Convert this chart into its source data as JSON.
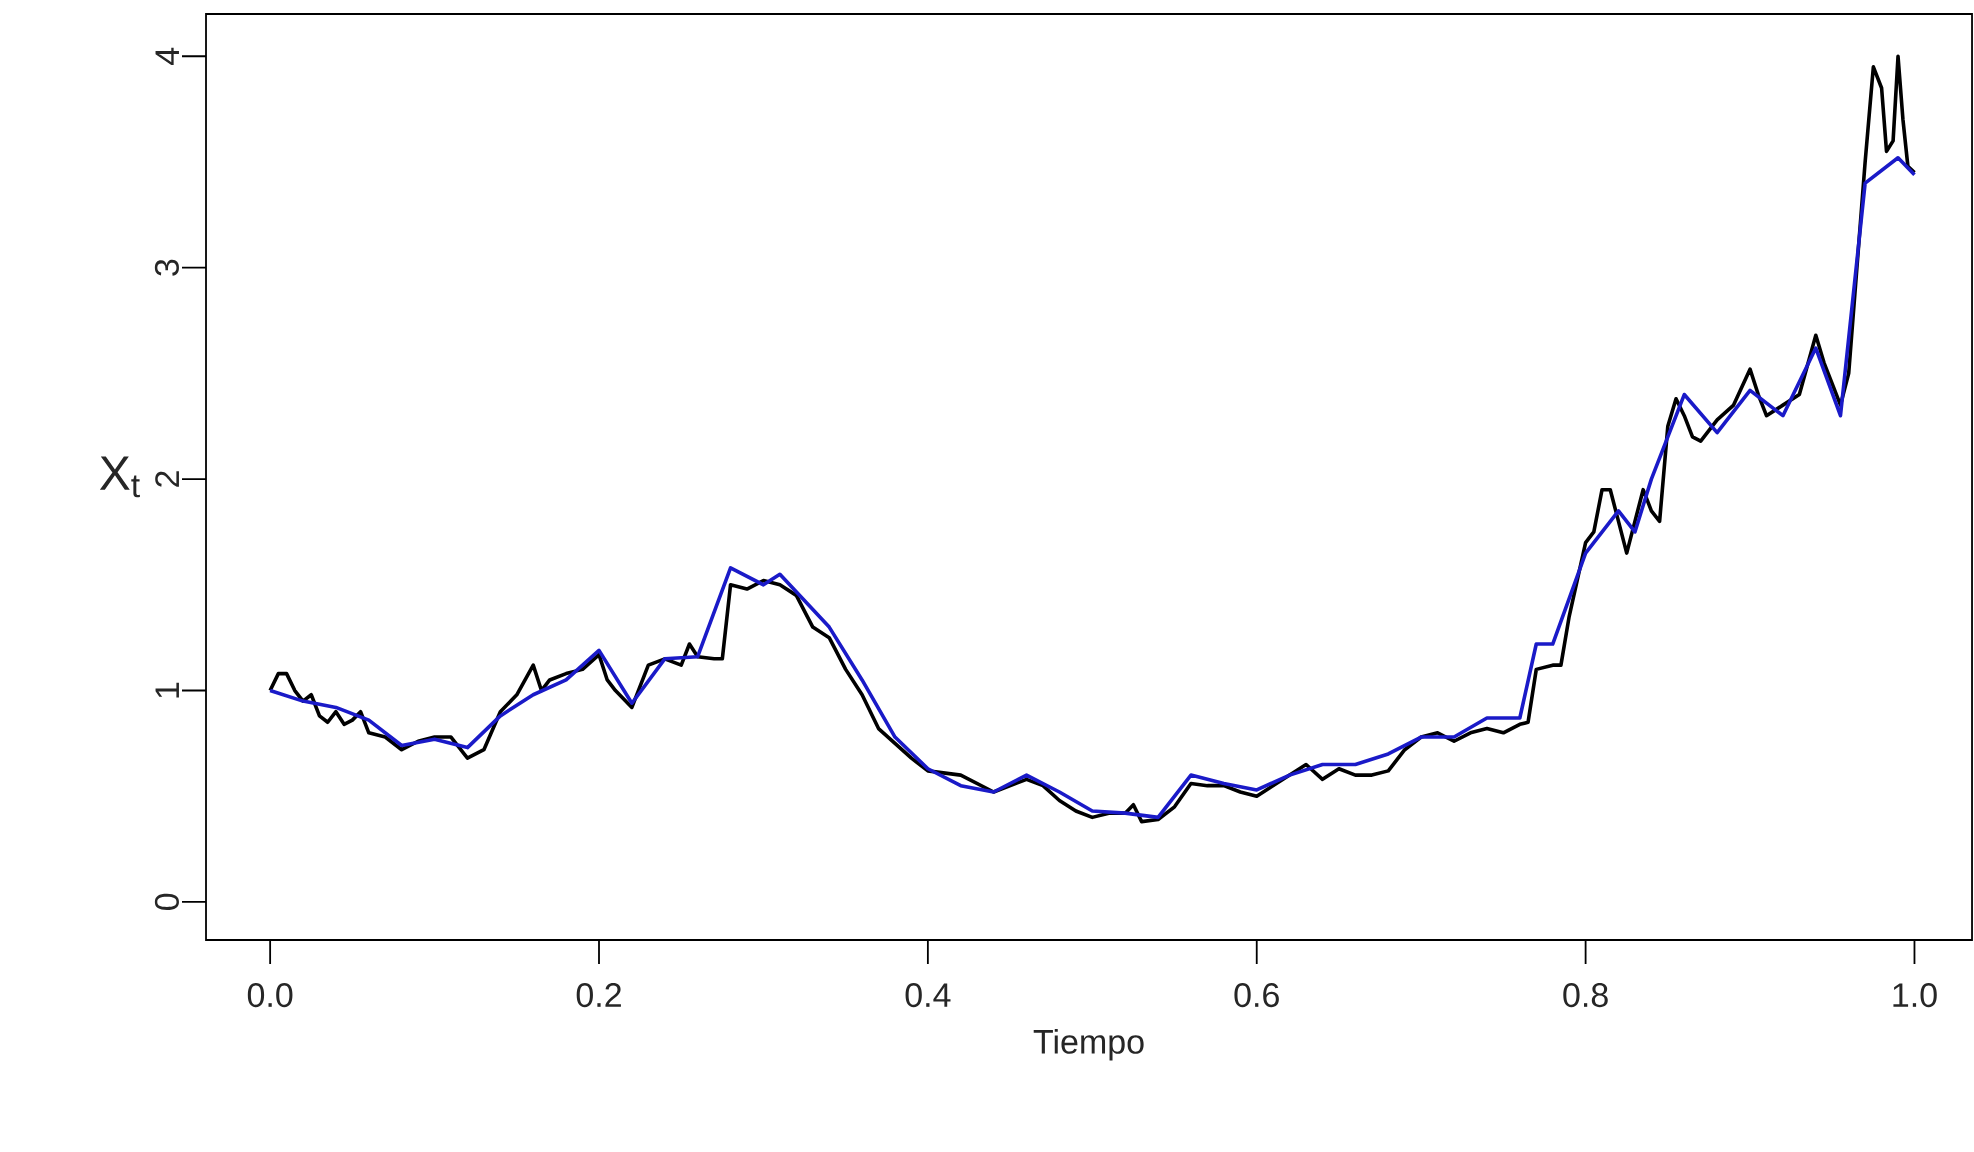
{
  "chart_data": {
    "type": "line",
    "xlabel": "Tiempo",
    "ylabel": "X$_{t}$",
    "xlim": [
      -0.039,
      1.035
    ],
    "ylim": [
      -0.18,
      4.2
    ],
    "xticks": [
      {
        "value": 0,
        "label": "0.0"
      },
      0.2,
      0.4,
      0.6,
      0.8,
      {
        "value": 1,
        "label": "1.0"
      }
    ],
    "yticks": [
      0,
      1,
      2,
      3,
      4
    ],
    "grid": false,
    "series": [
      {
        "color": "#000000",
        "x": [
          0,
          0.005,
          0.01,
          0.015,
          0.02,
          0.025,
          0.03,
          0.035,
          0.04,
          0.045,
          0.05,
          0.055,
          0.06,
          0.07,
          0.08,
          0.09,
          0.1,
          0.11,
          0.12,
          0.13,
          0.14,
          0.15,
          0.16,
          0.165,
          0.17,
          0.18,
          0.19,
          0.2,
          0.205,
          0.21,
          0.22,
          0.23,
          0.24,
          0.25,
          0.255,
          0.26,
          0.27,
          0.275,
          0.28,
          0.29,
          0.3,
          0.31,
          0.32,
          0.33,
          0.34,
          0.35,
          0.36,
          0.37,
          0.38,
          0.39,
          0.4,
          0.42,
          0.44,
          0.45,
          0.46,
          0.47,
          0.48,
          0.49,
          0.5,
          0.51,
          0.52,
          0.525,
          0.53,
          0.54,
          0.55,
          0.56,
          0.57,
          0.58,
          0.59,
          0.6,
          0.61,
          0.62,
          0.63,
          0.64,
          0.65,
          0.66,
          0.67,
          0.68,
          0.69,
          0.7,
          0.71,
          0.72,
          0.73,
          0.74,
          0.75,
          0.76,
          0.765,
          0.77,
          0.78,
          0.785,
          0.79,
          0.8,
          0.805,
          0.81,
          0.815,
          0.82,
          0.825,
          0.83,
          0.835,
          0.84,
          0.845,
          0.85,
          0.855,
          0.86,
          0.865,
          0.87,
          0.88,
          0.89,
          0.9,
          0.905,
          0.91,
          0.92,
          0.93,
          0.94,
          0.945,
          0.95,
          0.955,
          0.96,
          0.965,
          0.97,
          0.975,
          0.98,
          0.983,
          0.987,
          0.99,
          0.993,
          0.996,
          1.0
        ],
        "values": [
          1.0,
          1.08,
          1.08,
          1.0,
          0.95,
          0.98,
          0.88,
          0.85,
          0.9,
          0.84,
          0.86,
          0.9,
          0.8,
          0.78,
          0.72,
          0.76,
          0.78,
          0.78,
          0.68,
          0.72,
          0.9,
          0.98,
          1.12,
          1.0,
          1.05,
          1.08,
          1.1,
          1.17,
          1.05,
          1.0,
          0.92,
          1.12,
          1.15,
          1.12,
          1.22,
          1.16,
          1.15,
          1.15,
          1.5,
          1.48,
          1.52,
          1.5,
          1.45,
          1.3,
          1.25,
          1.1,
          0.98,
          0.82,
          0.75,
          0.68,
          0.62,
          0.6,
          0.52,
          0.55,
          0.58,
          0.55,
          0.48,
          0.43,
          0.4,
          0.42,
          0.42,
          0.46,
          0.38,
          0.39,
          0.45,
          0.56,
          0.55,
          0.55,
          0.52,
          0.5,
          0.55,
          0.6,
          0.65,
          0.58,
          0.63,
          0.6,
          0.6,
          0.62,
          0.72,
          0.78,
          0.8,
          0.76,
          0.8,
          0.82,
          0.8,
          0.84,
          0.85,
          1.1,
          1.12,
          1.12,
          1.35,
          1.7,
          1.75,
          1.95,
          1.95,
          1.8,
          1.65,
          1.8,
          1.95,
          1.85,
          1.8,
          2.25,
          2.38,
          2.3,
          2.2,
          2.18,
          2.28,
          2.35,
          2.52,
          2.4,
          2.3,
          2.35,
          2.4,
          2.68,
          2.55,
          2.45,
          2.35,
          2.5,
          3.0,
          3.5,
          3.95,
          3.85,
          3.55,
          3.6,
          4.0,
          3.7,
          3.48,
          3.45
        ]
      },
      {
        "color": "#1a1ac8",
        "x": [
          0,
          0.02,
          0.04,
          0.06,
          0.08,
          0.1,
          0.12,
          0.14,
          0.16,
          0.18,
          0.2,
          0.22,
          0.24,
          0.26,
          0.28,
          0.3,
          0.31,
          0.34,
          0.36,
          0.38,
          0.4,
          0.42,
          0.44,
          0.46,
          0.48,
          0.5,
          0.52,
          0.54,
          0.56,
          0.58,
          0.6,
          0.62,
          0.64,
          0.66,
          0.68,
          0.7,
          0.72,
          0.74,
          0.76,
          0.77,
          0.78,
          0.8,
          0.82,
          0.83,
          0.84,
          0.86,
          0.88,
          0.9,
          0.92,
          0.94,
          0.955,
          0.97,
          0.99,
          1.0
        ],
        "values": [
          1.0,
          0.95,
          0.92,
          0.86,
          0.74,
          0.77,
          0.73,
          0.88,
          0.98,
          1.05,
          1.19,
          0.94,
          1.15,
          1.16,
          1.58,
          1.5,
          1.55,
          1.3,
          1.05,
          0.78,
          0.63,
          0.55,
          0.52,
          0.6,
          0.52,
          0.43,
          0.42,
          0.4,
          0.6,
          0.56,
          0.53,
          0.6,
          0.65,
          0.65,
          0.7,
          0.78,
          0.78,
          0.87,
          0.87,
          1.22,
          1.22,
          1.65,
          1.85,
          1.75,
          2.0,
          2.4,
          2.22,
          2.42,
          2.3,
          2.62,
          2.3,
          3.4,
          3.52,
          3.44
        ]
      }
    ]
  }
}
